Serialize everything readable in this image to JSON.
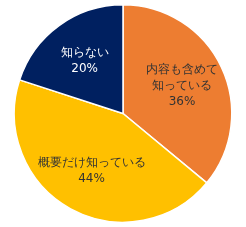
{
  "chart_data": {
    "type": "pie",
    "categories": [
      "内容も含めて知っている",
      "概要だけ知っている",
      "知らない"
    ],
    "values": [
      36,
      44,
      20
    ],
    "value_labels": [
      "36%",
      "44%",
      "20%"
    ],
    "colors": [
      "#ed7d31",
      "#ffc000",
      "#002060"
    ],
    "data_labels": true,
    "legend": false
  }
}
